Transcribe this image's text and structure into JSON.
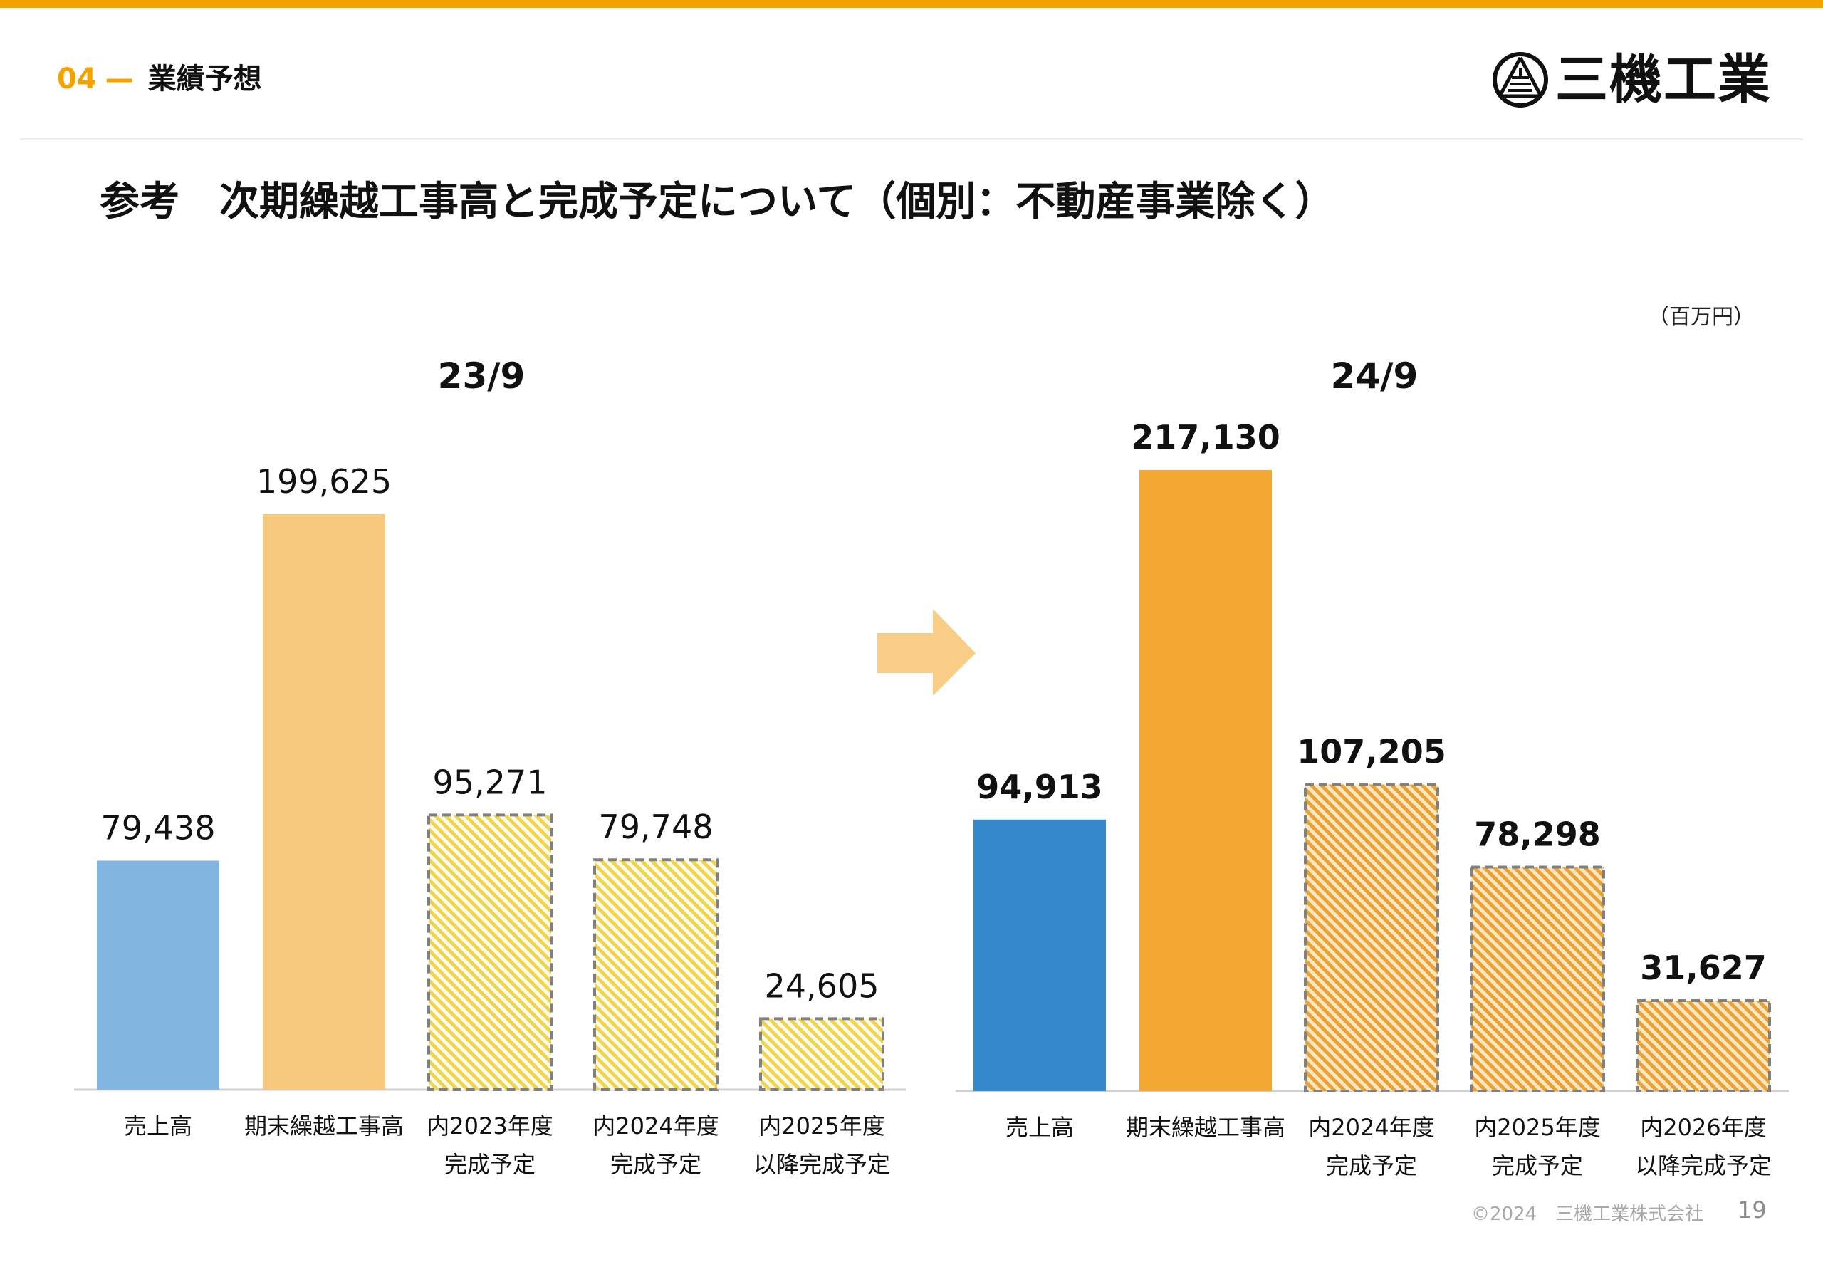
{
  "header": {
    "section_number": "04",
    "section_dash": "—",
    "section_title": "業績予想",
    "logo_text": "三機工業"
  },
  "page_title": "参考　次期繰越工事高と完成予定について（個別：不動産事業除く）",
  "unit": "（百万円）",
  "footer": {
    "copyright": "©2024　三機工業株式会社",
    "page_number": "19"
  },
  "colors": {
    "accent": "#F5A200",
    "left_sales": "#82B5E0",
    "left_backlog": "#F7C97E",
    "left_hatch": "#F2D34C",
    "right_sales": "#3389CC",
    "right_backlog": "#F2A833",
    "right_hatch": "#E9A233",
    "dashed_border": "#808080"
  },
  "chart_data": [
    {
      "type": "bar",
      "title": "23/9",
      "categories": [
        "売上高",
        "期末繰越工事高",
        "内2023年度\n完成予定",
        "内2024年度\n完成予定",
        "内2025年度\n以降完成予定"
      ],
      "values": [
        79438,
        199625,
        95271,
        79748,
        24605
      ],
      "value_labels": [
        "79,438",
        "199,625",
        "95,271",
        "79,748",
        "24,605"
      ],
      "ylim": [
        0,
        200000
      ],
      "grid": false,
      "legend": "none",
      "label_weight": "normal",
      "styles": [
        "solid-sales",
        "solid-backlog",
        "hatched",
        "hatched",
        "hatched"
      ]
    },
    {
      "type": "bar",
      "title": "24/9",
      "categories": [
        "売上高",
        "期末繰越工事高",
        "内2024年度\n完成予定",
        "内2025年度\n完成予定",
        "内2026年度\n以降完成予定"
      ],
      "values": [
        94913,
        217130,
        107205,
        78298,
        31627
      ],
      "value_labels": [
        "94,913",
        "217,130",
        "107,205",
        "78,298",
        "31,627"
      ],
      "ylim": [
        0,
        220000
      ],
      "grid": false,
      "legend": "none",
      "label_weight": "bold",
      "styles": [
        "solid-sales",
        "solid-backlog",
        "hatched",
        "hatched",
        "hatched"
      ]
    }
  ]
}
